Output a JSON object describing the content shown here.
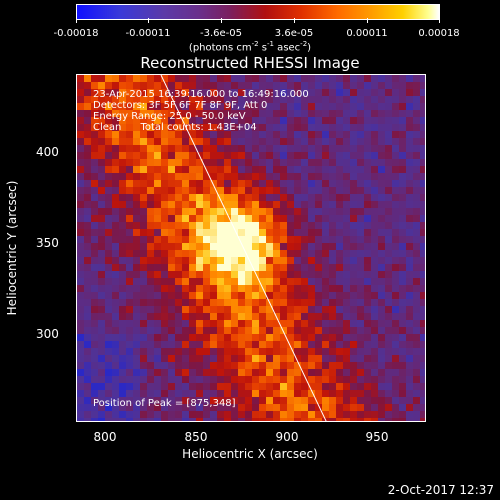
{
  "colorbar": {
    "ticks": [
      "-0.00018",
      "-0.00011",
      "-3.6e-05",
      "3.6e-05",
      "0.00011",
      "0.00018"
    ],
    "units_text": "(photons cm",
    "units_exp1": "-2",
    "units_mid1": " s",
    "units_exp2": "-1",
    "units_mid2": " asec",
    "units_exp3": "-2",
    "units_end": ")"
  },
  "title": "Reconstructed RHESSI Image",
  "info": {
    "line1": "23-Apr-2015 16:39:16.000 to 16:49:16.000",
    "line2": "Detectors: 3F 5F 6F 7F 8F 9F, Att 0",
    "line3": "Energy Range: 25.0 - 50.0 keV",
    "line4": "Clean      Total counts: 1.43E+04",
    "peak": "Position of Peak = [875,348]"
  },
  "x_axis": {
    "label": "Heliocentric X (arcsec)",
    "ticks": [
      "800",
      "850",
      "900",
      "950"
    ],
    "range": [
      784,
      977
    ]
  },
  "y_axis": {
    "label": "Heliocentric Y (arcsec)",
    "ticks": [
      "300",
      "350",
      "400"
    ],
    "range": [
      247,
      439
    ]
  },
  "peak_position": [
    875,
    348
  ],
  "timestamp": "2-Oct-2017 12:37"
}
